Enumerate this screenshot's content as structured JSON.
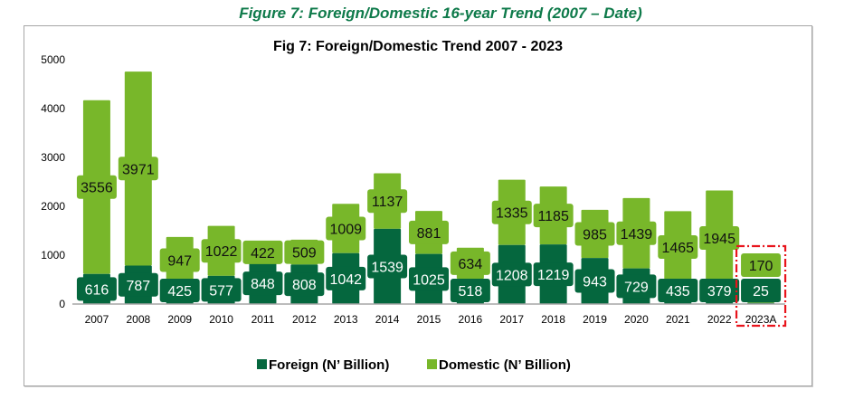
{
  "figure_caption": "Figure 7: Foreign/Domestic 16-year Trend (2007 – Date)",
  "colors": {
    "foreign": "#05673e",
    "domestic": "#78b72a",
    "highlight": "#e8141c",
    "caption": "#0e7a4a"
  },
  "chart_data": {
    "type": "bar",
    "stacked": true,
    "title": "Fig 7: Foreign/Domestic Trend 2007  - 2023",
    "xlabel": "",
    "ylabel": "",
    "ylim": [
      0,
      5000
    ],
    "yticks": [
      0,
      1000,
      2000,
      3000,
      4000,
      5000
    ],
    "grid": false,
    "legend_position": "bottom",
    "categories": [
      "2007",
      "2008",
      "2009",
      "2010",
      "2011",
      "2012",
      "2013",
      "2014",
      "2015",
      "2016",
      "2017",
      "2018",
      "2019",
      "2020",
      "2021",
      "2022",
      "2023A"
    ],
    "series": [
      {
        "name": "Foreign (N’ Billion)",
        "values": [
          616,
          787,
          425,
          577,
          848,
          808,
          1042,
          1539,
          1025,
          518,
          1208,
          1219,
          943,
          729,
          435,
          379,
          25
        ]
      },
      {
        "name": "Domestic (N’ Billion)",
        "values": [
          3556,
          3971,
          947,
          1022,
          422,
          509,
          1009,
          1137,
          881,
          634,
          1335,
          1185,
          985,
          1439,
          1465,
          1945,
          170
        ]
      }
    ],
    "annotations": [
      {
        "type": "highlight-box",
        "category": "2023A",
        "style": "red dash-dot"
      }
    ]
  }
}
